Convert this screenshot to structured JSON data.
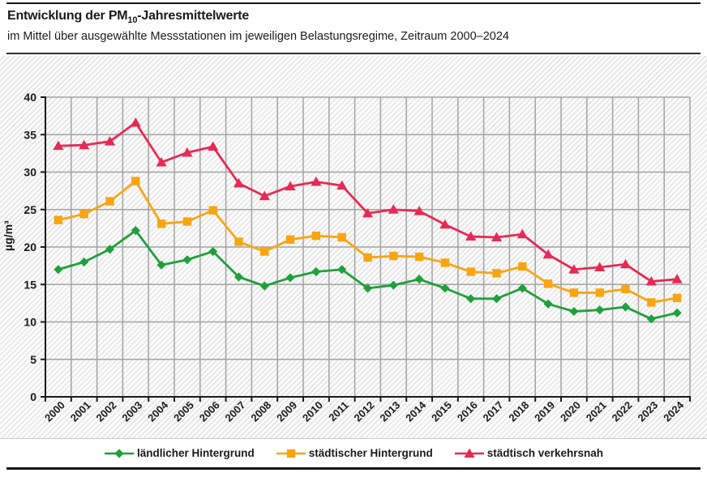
{
  "header": {
    "title_prefix": "Entwicklung der PM",
    "title_subscript": "10",
    "title_suffix": "-Jahresmittelwerte",
    "subtitle": "im Mittel über ausgewählte Messstationen im jeweiligen Belastungsregime, Zeitraum 2000–2024"
  },
  "chart_data": {
    "type": "line",
    "title": "Entwicklung der PM10-Jahresmittelwerte",
    "subtitle": "im Mittel über ausgewählte Messstationen im jeweiligen Belastungsregime, Zeitraum 2000–2024",
    "ylabel": "µg/m³",
    "xlabel": "",
    "ylim": [
      0,
      40
    ],
    "yticks": [
      0,
      5,
      10,
      15,
      20,
      25,
      30,
      35,
      40
    ],
    "grid": true,
    "legend_position": "bottom",
    "background_hatch": "diagonal-stripes",
    "colors": {
      "grid": "#a3a3a3",
      "axis": "#1a1a1a"
    },
    "categories": [
      "2000",
      "2001",
      "2002",
      "2003",
      "2004",
      "2005",
      "2006",
      "2007",
      "2008",
      "2009",
      "2010",
      "2011",
      "2012",
      "2013",
      "2014",
      "2015",
      "2016",
      "2017",
      "2018",
      "2019",
      "2020",
      "2021",
      "2022",
      "2023",
      "2024"
    ],
    "series": [
      {
        "name": "ländlicher Hintergrund",
        "color": "#1fa03c",
        "marker": "diamond",
        "values": [
          17.0,
          18.0,
          19.7,
          22.2,
          17.6,
          18.3,
          19.4,
          16.0,
          14.8,
          15.9,
          16.7,
          17.0,
          14.5,
          14.9,
          15.7,
          14.5,
          13.1,
          13.1,
          14.5,
          12.4,
          11.4,
          11.6,
          12.0,
          10.4,
          11.2
        ]
      },
      {
        "name": "städtischer Hintergrund",
        "color": "#f7a512",
        "marker": "square",
        "values": [
          23.6,
          24.4,
          26.1,
          28.8,
          23.1,
          23.4,
          24.9,
          20.7,
          19.4,
          21.0,
          21.5,
          21.3,
          18.6,
          18.8,
          18.7,
          17.9,
          16.7,
          16.5,
          17.4,
          15.1,
          13.9,
          13.9,
          14.4,
          12.6,
          13.2
        ]
      },
      {
        "name": "städtisch verkehrsnah",
        "color": "#e62a55",
        "marker": "triangle",
        "values": [
          33.5,
          33.6,
          34.1,
          36.6,
          31.3,
          32.6,
          33.4,
          28.5,
          26.8,
          28.1,
          28.7,
          28.2,
          24.5,
          25.0,
          24.8,
          23.0,
          21.4,
          21.3,
          21.7,
          19.0,
          17.0,
          17.3,
          17.7,
          15.4,
          15.7
        ]
      }
    ]
  }
}
